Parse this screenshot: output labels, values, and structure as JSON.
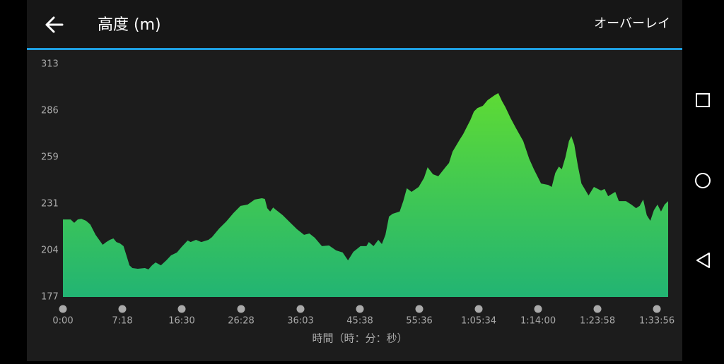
{
  "header": {
    "title": "高度 (m)",
    "action": "オーバーレイ"
  },
  "chart_data": {
    "type": "area",
    "x_label": "時間（時：分：秒）",
    "gradient": [
      "#66e02c",
      "#22b473"
    ],
    "x": [
      0,
      0.13,
      0.19,
      0.25,
      0.31,
      0.39,
      0.46,
      0.55,
      0.61,
      0.67,
      0.73,
      0.79,
      0.85,
      0.9,
      0.96,
      1.02,
      1.08,
      1.12,
      1.17,
      1.26,
      1.38,
      1.44,
      1.5,
      1.56,
      1.65,
      1.74,
      1.82,
      1.92,
      2,
      2.1,
      2.15,
      2.24,
      2.33,
      2.45,
      2.51,
      2.63,
      2.75,
      2.87,
      2.99,
      3.11,
      3.23,
      3.35,
      3.4,
      3.44,
      3.49,
      3.54,
      3.58,
      3.7,
      3.82,
      3.94,
      4.06,
      4.15,
      4.24,
      4.36,
      4.48,
      4.6,
      4.71,
      4.8,
      4.89,
      5.01,
      5.11,
      5.15,
      5.23,
      5.31,
      5.37,
      5.43,
      5.49,
      5.55,
      5.67,
      5.73,
      5.79,
      5.87,
      5.99,
      6.08,
      6.14,
      6.23,
      6.32,
      6.44,
      6.5,
      6.56,
      6.68,
      6.74,
      6.8,
      6.86,
      6.92,
      6.98,
      7.07,
      7.15,
      7.27,
      7.33,
      7.39,
      7.45,
      7.54,
      7.63,
      7.75,
      7.85,
      7.93,
      8.05,
      8.17,
      8.23,
      8.29,
      8.35,
      8.4,
      8.46,
      8.52,
      8.56,
      8.61,
      8.67,
      8.73,
      8.85,
      8.94,
      9.06,
      9.12,
      9.18,
      9.3,
      9.36,
      9.48,
      9.57,
      9.65,
      9.71,
      9.77,
      9.83,
      9.89,
      9.95,
      10.01,
      10.07,
      10.13,
      10.19
    ],
    "values": [
      222.3,
      222.3,
      220.3,
      222.3,
      222.7,
      221.5,
      219.4,
      213.3,
      210.4,
      207.5,
      209.1,
      210.4,
      211.2,
      209.1,
      208.3,
      206.7,
      200.1,
      195.5,
      193.9,
      193.5,
      193.9,
      193.1,
      195.5,
      197.2,
      195.5,
      198.4,
      201.3,
      203.0,
      206.3,
      210.0,
      209.1,
      210.4,
      209.1,
      210.4,
      212.0,
      217.0,
      221.1,
      226.0,
      230.2,
      231.0,
      233.9,
      234.7,
      234.3,
      228.9,
      226.9,
      229.3,
      228.1,
      224.8,
      220.7,
      216.6,
      213.3,
      214.1,
      211.6,
      206.7,
      207.1,
      204.2,
      203.0,
      198.4,
      203.4,
      206.7,
      206.7,
      209.1,
      206.7,
      210.4,
      207.9,
      213.3,
      224.0,
      225.6,
      226.9,
      233.0,
      240.5,
      238.4,
      241.3,
      246.6,
      252.8,
      248.7,
      247.5,
      252.8,
      255.3,
      261.9,
      268.9,
      272.2,
      276.3,
      280.4,
      285.4,
      287.4,
      288.7,
      292.0,
      294.9,
      296.1,
      291.6,
      287.9,
      281.3,
      275.5,
      268.1,
      257.8,
      251.6,
      243.3,
      242.5,
      241.3,
      249.5,
      253.2,
      251.6,
      258.6,
      268.1,
      271.0,
      266.0,
      253.7,
      243.3,
      236.3,
      241.3,
      239.2,
      240.1,
      235.9,
      238.4,
      233.0,
      233.0,
      231.0,
      228.9,
      230.2,
      233.9,
      224.8,
      221.5,
      227.7,
      231.0,
      226.9,
      231.0,
      233.0
    ],
    "xlim": [
      0,
      10.19
    ],
    "xticks": [
      {
        "value": 0,
        "label": "0:00"
      },
      {
        "value": 1,
        "label": "7:18"
      },
      {
        "value": 2,
        "label": "16:30"
      },
      {
        "value": 3,
        "label": "26:28"
      },
      {
        "value": 4,
        "label": "36:03"
      },
      {
        "value": 5,
        "label": "45:38"
      },
      {
        "value": 6,
        "label": "55:36"
      },
      {
        "value": 7,
        "label": "1:05:34"
      },
      {
        "value": 8,
        "label": "1:14:00"
      },
      {
        "value": 9,
        "label": "1:23:58"
      },
      {
        "value": 10,
        "label": "1:33:56"
      }
    ],
    "ylim": [
      177,
      313
    ],
    "yticks": [
      177,
      {
        "value": 204.2,
        "label": "204"
      },
      {
        "value": 231.4,
        "label": "231"
      },
      {
        "value": 258.6,
        "label": "259"
      },
      {
        "value": 285.8,
        "label": "286"
      },
      313
    ]
  }
}
